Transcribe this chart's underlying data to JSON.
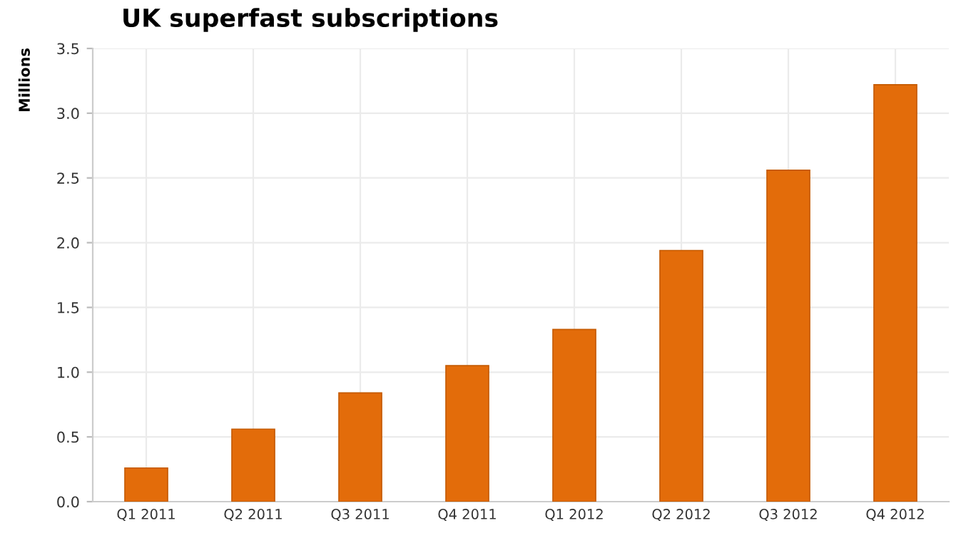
{
  "chart_data": {
    "type": "bar",
    "title": "UK superfast subscriptions",
    "ylabel": "Millions",
    "categories": [
      "Q1 2011",
      "Q2 2011",
      "Q3 2011",
      "Q4 2011",
      "Q1 2012",
      "Q2 2012",
      "Q3 2012",
      "Q4 2012"
    ],
    "values": [
      0.26,
      0.56,
      0.84,
      1.05,
      1.33,
      1.94,
      2.56,
      3.22
    ],
    "color": "#e36c0a",
    "ylim": [
      0,
      3.5
    ],
    "yticks": [
      {
        "value": 0,
        "label": "0.0"
      },
      {
        "value": 0.5,
        "label": "0.5"
      },
      {
        "value": 1,
        "label": "1.0"
      },
      {
        "value": 1.5,
        "label": "1.5"
      },
      {
        "value": 2,
        "label": "2.0"
      },
      {
        "value": 2.5,
        "label": "2.5"
      },
      {
        "value": 3,
        "label": "3.0"
      },
      {
        "value": 3.5,
        "label": "3.5"
      }
    ],
    "grid": true,
    "legend": false
  }
}
